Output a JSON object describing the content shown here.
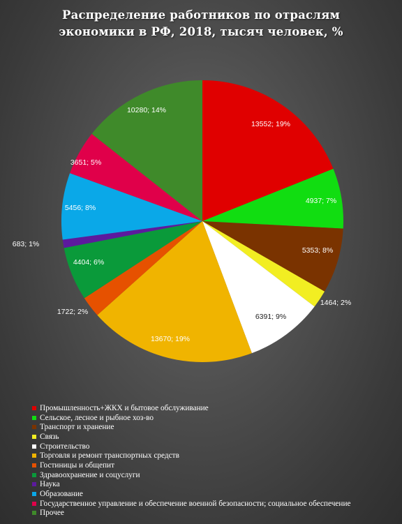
{
  "title": {
    "line1": "Распределение работников по отраслям",
    "line2": "экономики в РФ, 2018, тысяч человек, %"
  },
  "chart_data": {
    "type": "pie",
    "title": "Распределение работников по отраслям экономики в РФ, 2018, тысяч человек, %",
    "legend_position": "bottom",
    "slices": [
      {
        "name": "Промышленность+ЖКХ и бытовое обслуживание",
        "value": 13552,
        "label": "13552; 19%",
        "color": "#e00000"
      },
      {
        "name": "Сельское, лесное  и рыбное хоз-во",
        "value": 4937,
        "label": "4937; 7%",
        "color": "#11dd11"
      },
      {
        "name": "Транспорт и хранение",
        "value": 5353,
        "label": "5353; 8%",
        "color": "#7a3300"
      },
      {
        "name": "Связь",
        "value": 1464,
        "label": "1464; 2%",
        "color": "#f2ee22"
      },
      {
        "name": "Строительство",
        "value": 6391,
        "label": "6391; 9%",
        "color": "#ffffff"
      },
      {
        "name": "Торговля и ремонт транспортных  средств",
        "value": 13670,
        "label": "13670; 19%",
        "color": "#f0b400"
      },
      {
        "name": "Гостиницы  и  общепит",
        "value": 1722,
        "label": "1722; 2%",
        "color": "#e65100"
      },
      {
        "name": "Здравоохранение  и  соцуслуги",
        "value": 4404,
        "label": "4404; 6%",
        "color": "#0a9a3a"
      },
      {
        "name": "Наука",
        "value": 683,
        "label": "683; 1%",
        "color": "#5c1a9e"
      },
      {
        "name": "Образование",
        "value": 5456,
        "label": "5456; 8%",
        "color": "#0aa8e8"
      },
      {
        "name": "Государственное управление и обеспечение  военной безопасности;  социальное обеспечение",
        "value": 3651,
        "label": "3651; 5%",
        "color": "#e0004a"
      },
      {
        "name": "Прочее",
        "value": 10280,
        "label": "10280; 14%",
        "color": "#3f8a2a"
      }
    ]
  }
}
